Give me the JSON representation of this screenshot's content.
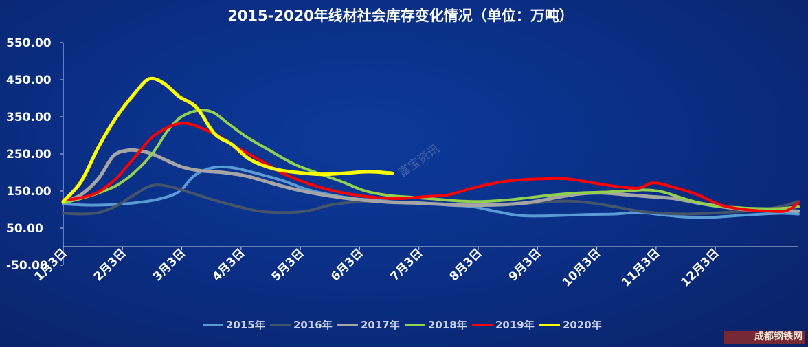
{
  "watermark": "富宝资讯",
  "logo": "成都钢铁网",
  "chart_data": {
    "type": "line",
    "title": "2015-2020年线材社会库存变化情况（单位：万吨）",
    "xlabel": "",
    "ylabel": "",
    "ylim": [
      -50,
      550
    ],
    "y_ticks": [
      "550.00",
      "450.00",
      "350.00",
      "250.00",
      "150.00",
      "50.00",
      "-50.00"
    ],
    "x_ticks": [
      "1月3日",
      "2月3日",
      "3月3日",
      "4月3日",
      "5月3日",
      "6月3日",
      "7月3日",
      "8月3日",
      "9月3日",
      "10月3日",
      "11月3日",
      "12月3日"
    ],
    "x_range": [
      0,
      12.4
    ],
    "legend_position": "bottom",
    "grid": false,
    "series": [
      {
        "name": "2015年",
        "color": "#5b9bd5",
        "x": [
          0,
          0.4,
          0.8,
          1.2,
          1.6,
          1.95,
          2.2,
          2.45,
          2.7,
          2.95,
          3.3,
          3.7,
          4.1,
          4.5,
          4.9,
          5.3,
          5.7,
          6.1,
          6.5,
          6.9,
          7.3,
          7.7,
          8.1,
          8.5,
          8.9,
          9.3,
          9.7,
          10.1,
          10.5,
          10.9,
          11.3,
          11.7,
          12.1,
          12.4
        ],
        "values": [
          115,
          112,
          113,
          118,
          128,
          148,
          190,
          210,
          215,
          210,
          196,
          178,
          155,
          140,
          130,
          125,
          120,
          117,
          112,
          108,
          95,
          84,
          83,
          85,
          87,
          88,
          92,
          86,
          80,
          79,
          83,
          87,
          90,
          88
        ]
      },
      {
        "name": "2016年",
        "color": "#44546a",
        "x": [
          0,
          0.3,
          0.6,
          0.9,
          1.2,
          1.5,
          1.8,
          2.1,
          2.5,
          2.9,
          3.3,
          3.7,
          4.1,
          4.5,
          4.9,
          5.3,
          5.7,
          6.1,
          6.5,
          6.9,
          7.3,
          7.7,
          8.1,
          8.5,
          8.9,
          9.3,
          9.7,
          10.1,
          10.5,
          10.9,
          11.3,
          11.7,
          12.1,
          12.4
        ],
        "values": [
          90,
          88,
          92,
          110,
          140,
          165,
          162,
          148,
          128,
          110,
          96,
          92,
          96,
          112,
          120,
          122,
          120,
          116,
          114,
          112,
          112,
          115,
          120,
          123,
          118,
          108,
          96,
          90,
          88,
          90,
          94,
          98,
          108,
          122
        ]
      },
      {
        "name": "2017年",
        "color": "#a5a5a5",
        "x": [
          0,
          0.3,
          0.6,
          0.85,
          1.1,
          1.3,
          1.5,
          1.75,
          2.0,
          2.3,
          2.7,
          3.1,
          3.5,
          3.9,
          4.3,
          4.7,
          5.1,
          5.5,
          5.9,
          6.3,
          6.7,
          7.1,
          7.5,
          7.9,
          8.3,
          8.7,
          9.1,
          9.5,
          9.9,
          10.3,
          10.7,
          11.1,
          11.5,
          11.9,
          12.4
        ],
        "values": [
          120,
          140,
          185,
          245,
          260,
          258,
          250,
          232,
          215,
          205,
          200,
          190,
          172,
          155,
          142,
          132,
          125,
          120,
          118,
          115,
          112,
          112,
          114,
          120,
          132,
          142,
          145,
          140,
          135,
          130,
          118,
          108,
          100,
          98,
          96
        ]
      },
      {
        "name": "2018年",
        "color": "#92d050",
        "x": [
          0,
          0.3,
          0.6,
          0.9,
          1.2,
          1.5,
          1.75,
          1.95,
          2.15,
          2.35,
          2.55,
          2.8,
          3.1,
          3.5,
          3.9,
          4.3,
          4.7,
          5.1,
          5.5,
          5.9,
          6.3,
          6.7,
          7.1,
          7.5,
          7.9,
          8.3,
          8.7,
          9.1,
          9.5,
          9.8,
          10.1,
          10.5,
          10.9,
          11.3,
          11.7,
          12.1,
          12.4
        ],
        "values": [
          118,
          130,
          145,
          165,
          200,
          250,
          310,
          345,
          362,
          368,
          360,
          330,
          295,
          258,
          222,
          198,
          175,
          150,
          138,
          133,
          128,
          123,
          122,
          126,
          133,
          140,
          145,
          147,
          150,
          153,
          148,
          128,
          112,
          106,
          103,
          103,
          108
        ]
      },
      {
        "name": "2019年",
        "color": "#ff0000",
        "x": [
          0,
          0.3,
          0.6,
          0.9,
          1.2,
          1.5,
          1.75,
          1.95,
          2.15,
          2.35,
          2.6,
          2.9,
          3.3,
          3.7,
          4.1,
          4.5,
          4.9,
          5.3,
          5.7,
          6.1,
          6.5,
          6.9,
          7.3,
          7.7,
          8.1,
          8.5,
          8.9,
          9.3,
          9.7,
          9.95,
          10.3,
          10.7,
          11.1,
          11.5,
          11.9,
          12.2,
          12.4
        ],
        "values": [
          125,
          132,
          148,
          185,
          240,
          295,
          320,
          332,
          330,
          318,
          300,
          270,
          235,
          198,
          172,
          153,
          140,
          132,
          130,
          135,
          140,
          158,
          172,
          180,
          183,
          183,
          173,
          163,
          158,
          172,
          160,
          140,
          112,
          100,
          96,
          97,
          118
        ]
      },
      {
        "name": "2020年",
        "color": "#ffff00",
        "x": [
          0,
          0.3,
          0.6,
          0.9,
          1.2,
          1.45,
          1.7,
          1.95,
          2.25,
          2.55,
          2.85,
          3.15,
          3.55,
          3.95,
          4.35,
          4.75,
          5.15,
          5.55
        ],
        "values": [
          122,
          175,
          270,
          350,
          412,
          452,
          440,
          405,
          375,
          305,
          275,
          235,
          210,
          200,
          195,
          198,
          202,
          198
        ]
      }
    ]
  }
}
